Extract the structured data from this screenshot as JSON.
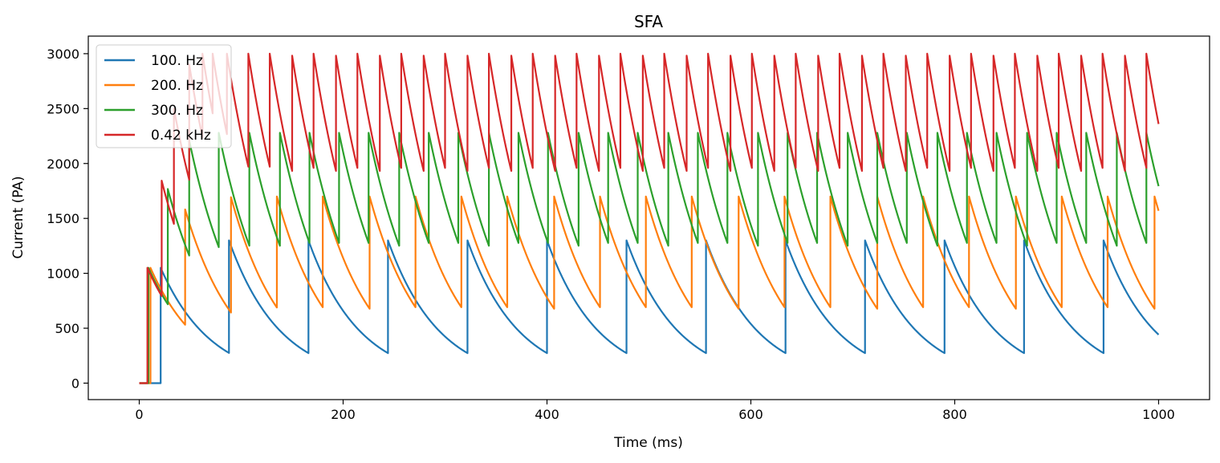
{
  "chart_data": {
    "type": "line",
    "title": "SFA",
    "xlabel": "Time (ms)",
    "ylabel": "Current (PA)",
    "xlim": [
      -50,
      1050
    ],
    "ylim": [
      -150,
      3160
    ],
    "xticks": [
      0,
      200,
      400,
      600,
      800,
      1000
    ],
    "yticks": [
      0,
      500,
      1000,
      1500,
      2000,
      2500,
      3000
    ],
    "grid": false,
    "legend_position": "upper left",
    "series": [
      {
        "name": "100. Hz",
        "color": "#1f77b4",
        "onset_ms": 21,
        "jump": 1050,
        "tau_ms": 50,
        "cap": 1300,
        "x_end": 1000,
        "spike_times": [
          21,
          88,
          166,
          244,
          322,
          400,
          478,
          556,
          634,
          712,
          790,
          868,
          946
        ]
      },
      {
        "name": "200. Hz",
        "color": "#ff7f0e",
        "onset_ms": 11,
        "jump": 1050,
        "tau_ms": 50,
        "cap": 1700,
        "x_end": 1000,
        "spike_times": [
          11,
          45,
          90,
          135,
          180,
          226,
          271,
          316,
          361,
          407,
          452,
          497,
          542,
          588,
          633,
          678,
          724,
          769,
          814,
          860,
          905,
          950,
          996
        ]
      },
      {
        "name": "300. Hz",
        "color": "#2ca02c",
        "onset_ms": 9,
        "jump": 1050,
        "tau_ms": 50,
        "cap": 2280,
        "x_end": 1000,
        "spike_times": [
          9,
          28,
          49,
          78,
          108,
          138,
          167,
          196,
          225,
          255,
          284,
          313,
          343,
          372,
          401,
          431,
          460,
          489,
          519,
          548,
          577,
          607,
          636,
          665,
          695,
          724,
          753,
          783,
          812,
          841,
          871,
          900,
          929,
          959,
          988
        ]
      },
      {
        "name": "0.42 kHz",
        "color": "#d62728",
        "onset_ms": 8,
        "jump": 1050,
        "tau_ms": 50,
        "cap": 3000,
        "x_end": 1000,
        "spike_times": [
          8,
          22,
          34,
          49,
          62,
          72,
          86,
          107,
          128,
          150,
          171,
          193,
          214,
          236,
          257,
          279,
          300,
          322,
          343,
          365,
          386,
          408,
          429,
          451,
          472,
          494,
          515,
          537,
          558,
          580,
          601,
          623,
          644,
          666,
          687,
          709,
          730,
          752,
          773,
          795,
          816,
          838,
          859,
          881,
          902,
          924,
          945,
          967,
          988
        ]
      }
    ]
  }
}
